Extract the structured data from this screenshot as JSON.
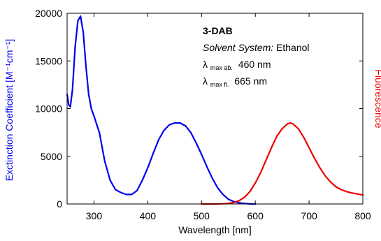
{
  "chart_data": {
    "type": "line",
    "xlabel": "Wavelength [nm]",
    "ylabel_left": "Exctinction Coefficient [M⁻¹cm⁻¹]",
    "ylabel_right": "Fluorescence",
    "xlim": [
      250,
      800
    ],
    "ylim": [
      0,
      20000
    ],
    "x_ticks": [
      300,
      400,
      500,
      600,
      700,
      800
    ],
    "y_ticks": [
      0,
      5000,
      10000,
      15000,
      20000
    ],
    "grid": false,
    "annotations": {
      "compound": "3-DAB",
      "solvent_label": "Solvent System:",
      "solvent": "Ethanol",
      "lambda_symbol": "λ",
      "abs_subscript": "max ab.",
      "abs_value": "460 nm",
      "fl_subscript": "max fl.",
      "fl_value": "665 nm"
    },
    "series": [
      {
        "axis": "left",
        "color": "#0000ee",
        "x": [
          250,
          253,
          256,
          260,
          265,
          270,
          275,
          280,
          285,
          290,
          295,
          300,
          310,
          320,
          330,
          340,
          350,
          360,
          370,
          380,
          390,
          400,
          410,
          420,
          430,
          440,
          450,
          460,
          470,
          480,
          490,
          500,
          510,
          520,
          530,
          540,
          550,
          560,
          570,
          580,
          590,
          600
        ],
        "values": [
          11500,
          10400,
          10200,
          12000,
          16500,
          19200,
          19700,
          18000,
          14500,
          11500,
          10000,
          9200,
          7500,
          4500,
          2500,
          1500,
          1200,
          1000,
          1000,
          1400,
          2500,
          3800,
          5300,
          6700,
          7700,
          8300,
          8500,
          8500,
          8200,
          7500,
          6400,
          5200,
          3900,
          2700,
          1700,
          1000,
          500,
          250,
          120,
          50,
          10,
          0
        ]
      },
      {
        "axis": "right",
        "color": "#ee0000",
        "x": [
          500,
          520,
          540,
          550,
          560,
          570,
          580,
          590,
          600,
          610,
          620,
          630,
          640,
          650,
          660,
          665,
          670,
          680,
          690,
          700,
          710,
          720,
          730,
          740,
          750,
          760,
          770,
          780,
          790,
          800
        ],
        "values": [
          0,
          0,
          20,
          60,
          150,
          350,
          700,
          1300,
          2200,
          3300,
          4600,
          5900,
          7100,
          7900,
          8400,
          8500,
          8400,
          7900,
          7000,
          5900,
          4800,
          3800,
          2950,
          2300,
          1800,
          1500,
          1300,
          1150,
          1050,
          950
        ]
      }
    ]
  }
}
